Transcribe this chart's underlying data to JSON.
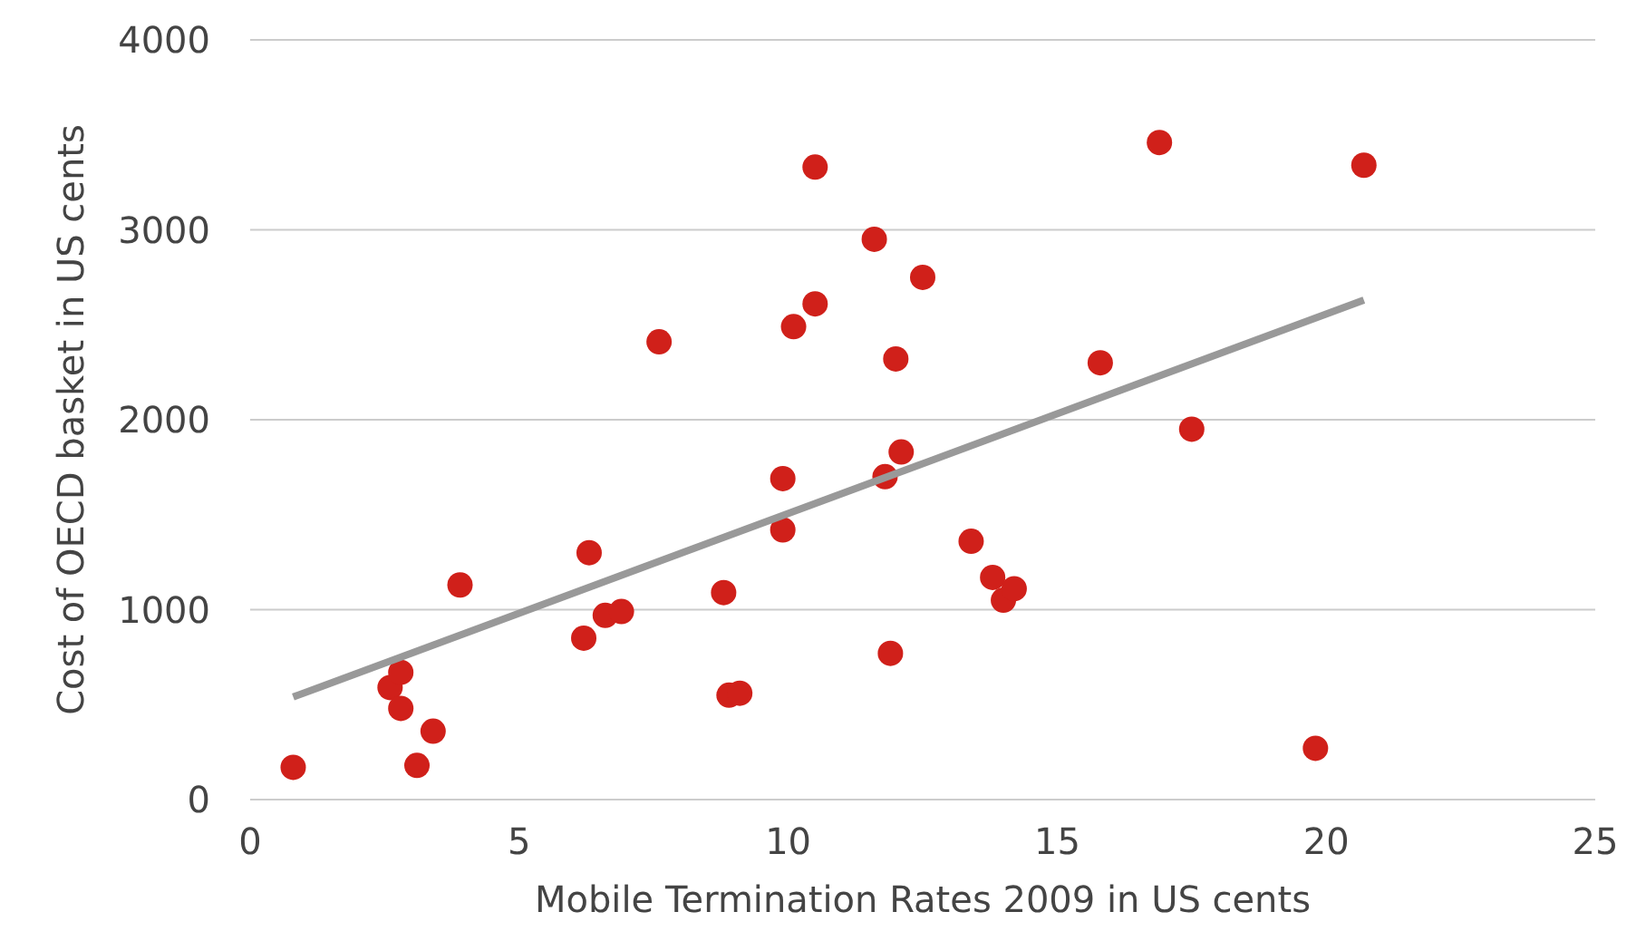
{
  "chart_data": {
    "type": "scatter",
    "xlabel": "Mobile Termination Rates 2009 in US cents",
    "ylabel": "Cost of OECD basket in US cents",
    "xlim": [
      0,
      25
    ],
    "xticks": [
      0,
      5,
      10,
      15,
      20,
      25
    ],
    "ylim": [
      0,
      4000
    ],
    "yticks": [
      0,
      1000,
      2000,
      3000,
      4000
    ],
    "grid": "y",
    "series": [
      {
        "color": "#d0201a",
        "marker": "circle",
        "x": [
          0.8,
          2.6,
          2.8,
          2.8,
          3.1,
          3.4,
          3.9,
          6.2,
          6.3,
          6.6,
          6.9,
          7.6,
          8.8,
          8.9,
          9.1,
          9.9,
          9.9,
          10.1,
          10.5,
          10.5,
          11.6,
          11.8,
          11.9,
          12.0,
          12.1,
          12.5,
          13.4,
          13.8,
          14.0,
          14.2,
          15.8,
          16.9,
          17.5,
          19.8,
          20.7
        ],
        "values": [
          170,
          590,
          670,
          480,
          180,
          360,
          1130,
          850,
          1300,
          970,
          990,
          2410,
          1090,
          550,
          560,
          1690,
          1420,
          2490,
          3330,
          2610,
          2950,
          1700,
          770,
          2320,
          1830,
          2750,
          1360,
          1170,
          1050,
          1110,
          2300,
          3460,
          1950,
          270,
          3340
        ]
      },
      {
        "type": "line",
        "color": "#999999",
        "x": [
          0.8,
          20.7
        ],
        "values": [
          540,
          2630
        ]
      }
    ]
  }
}
